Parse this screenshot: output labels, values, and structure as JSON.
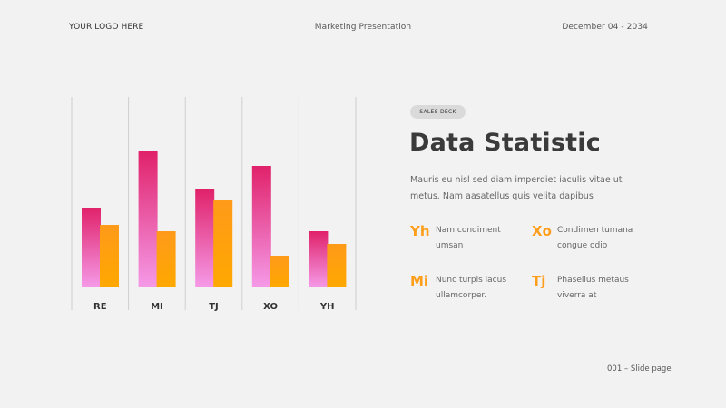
{
  "header": {
    "logo": "YOUR LOGO HERE",
    "presentation_title": "Marketing Presentation",
    "date": "December 04 - 2034"
  },
  "badge": "SALES DECK",
  "heading": "Data Statistic",
  "description": "Mauris eu nisl sed diam imperdiet iaculis vitae ut metus. Nam aasatellus quis velita dapibus",
  "stats": [
    {
      "code": "Yh",
      "text": "Nam condiment umsan"
    },
    {
      "code": "Xo",
      "text": "Condimen tumana congue odio"
    },
    {
      "code": "Mi",
      "text": "Nunc turpis lacus ullamcorper."
    },
    {
      "code": "Tj",
      "text": "Phasellus metaus viverra at"
    }
  ],
  "footer": "001 – Slide page",
  "colors": {
    "pink_top": "#e0226a",
    "pink_bottom": "#f59ae8",
    "orange_top": "#ff9a1a",
    "orange_bottom": "#ffa800",
    "accent": "#ff9e1b",
    "background": "#f2f2f2"
  },
  "chart_data": {
    "type": "bar",
    "categories": [
      "RE",
      "MI",
      "TJ",
      "XO",
      "YH"
    ],
    "series": [
      {
        "values": [
          88,
          150,
          108,
          134,
          62
        ]
      },
      {
        "values": [
          69,
          62,
          96,
          35,
          48
        ]
      }
    ],
    "ylim": [
      0,
      160
    ],
    "grid": false
  }
}
